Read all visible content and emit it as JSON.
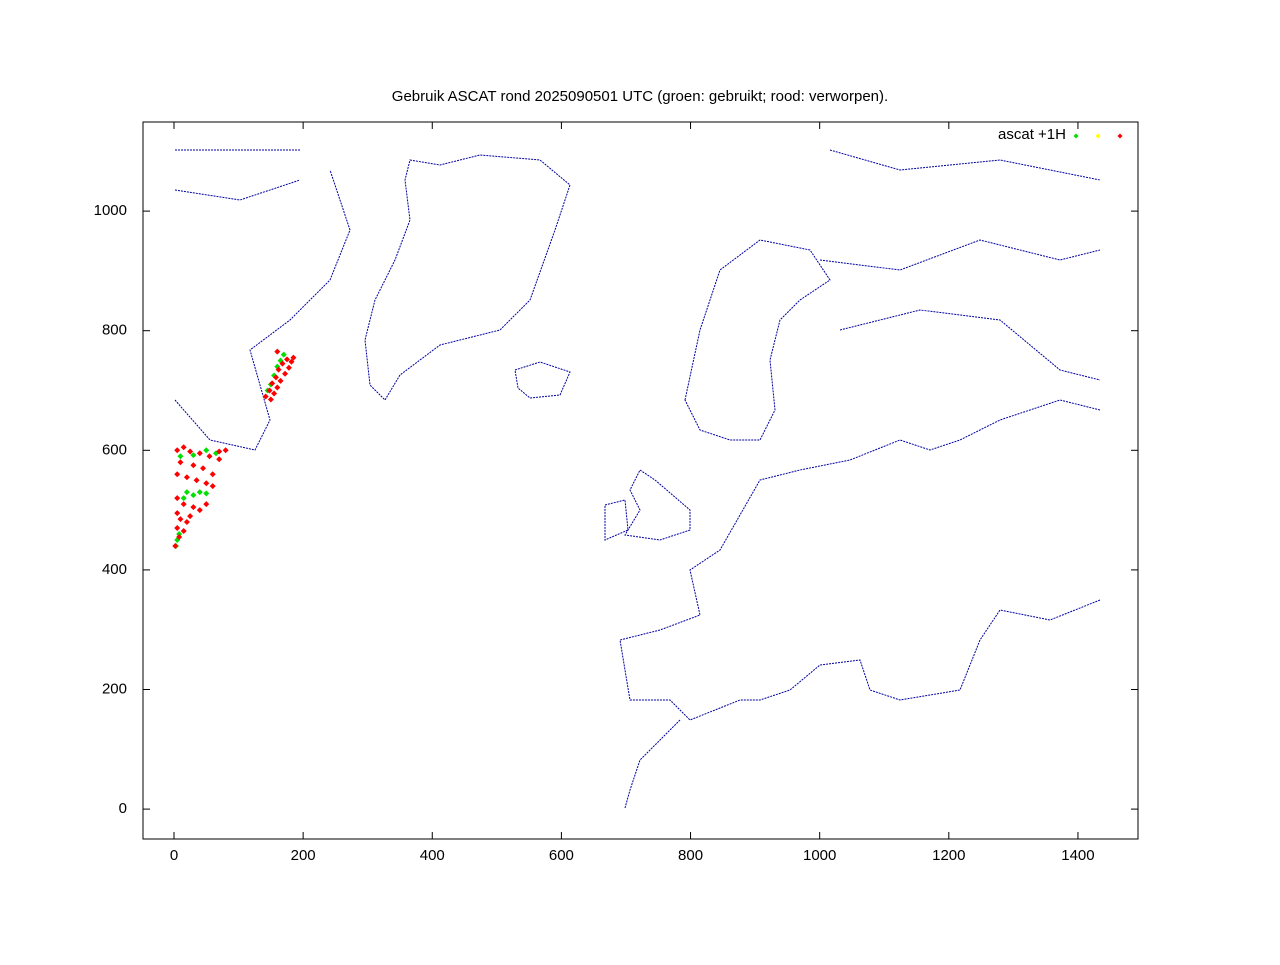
{
  "chart_data": {
    "type": "scatter",
    "title": "Gebruik ASCAT rond 2025090501 UTC (groen: gebruikt; rood: verworpen).",
    "legend_label": "ascat +1H",
    "xlim": [
      -48,
      1493
    ],
    "ylim": [
      -50,
      1149
    ],
    "xticks": [
      0,
      200,
      400,
      600,
      800,
      1000,
      1200,
      1400
    ],
    "yticks": [
      0,
      200,
      400,
      600,
      800,
      1000
    ],
    "series": [
      {
        "color": "#00e000",
        "x": [
          10,
          30,
          50,
          65,
          20,
          30,
          40,
          50,
          15,
          5,
          3,
          8,
          160,
          165,
          155,
          150,
          170,
          145
        ],
        "y": [
          590,
          592,
          600,
          595,
          530,
          525,
          530,
          528,
          520,
          450,
          440,
          460,
          740,
          750,
          725,
          710,
          760,
          700
        ]
      },
      {
        "color": "#ffff00",
        "x": [],
        "y": []
      },
      {
        "color": "#ff0000",
        "x": [
          142,
          148,
          152,
          158,
          162,
          168,
          175,
          182,
          178,
          172,
          165,
          160,
          155,
          150,
          160,
          185,
          5,
          15,
          25,
          40,
          55,
          70,
          80,
          10,
          30,
          45,
          5,
          20,
          35,
          50,
          60,
          5,
          15,
          30,
          40,
          50,
          5,
          10,
          20,
          25,
          5,
          15,
          8,
          2,
          60,
          70
        ],
        "y": [
          690,
          700,
          712,
          722,
          735,
          745,
          752,
          748,
          738,
          728,
          716,
          705,
          695,
          685,
          765,
          755,
          600,
          605,
          598,
          595,
          590,
          598,
          600,
          580,
          575,
          570,
          560,
          555,
          550,
          545,
          540,
          520,
          510,
          505,
          500,
          510,
          495,
          485,
          480,
          490,
          470,
          465,
          455,
          440,
          560,
          585
        ]
      }
    ]
  }
}
